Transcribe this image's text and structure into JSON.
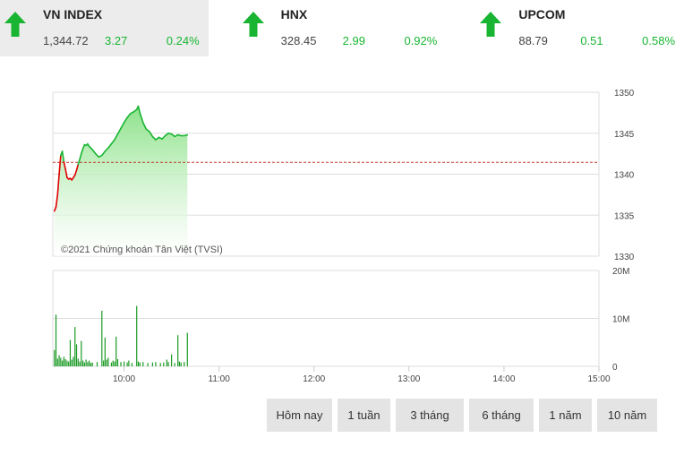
{
  "indices": [
    {
      "name": "VN INDEX",
      "price": "1,344.72",
      "change": "3.27",
      "percent": "0.24%",
      "direction": "up",
      "active": true
    },
    {
      "name": "HNX",
      "price": "328.45",
      "change": "2.99",
      "percent": "0.92%",
      "direction": "up",
      "active": false
    },
    {
      "name": "UPCOM",
      "price": "88.79",
      "change": "0.51",
      "percent": "0.58%",
      "direction": "up",
      "active": false
    }
  ],
  "colors": {
    "up": "#19b532",
    "down": "#e00000",
    "reference": "#c0392b",
    "fill_top": "#8de28a",
    "volume": "#1a9a23"
  },
  "watermark": "©2021 Chứng khoán Tân Việt (TVSI)",
  "timeframes": [
    "Hôm nay",
    "1 tuần",
    "3 tháng",
    "6 tháng",
    "1 năm",
    "10 năm"
  ],
  "chart_data": {
    "type": "area",
    "reference": 1341.45,
    "price_axis": {
      "ticks": [
        1330,
        1335,
        1340,
        1345,
        1350
      ],
      "ylim": [
        1330,
        1350
      ]
    },
    "volume_axis": {
      "ticks": [
        "0",
        "10M",
        "20M"
      ],
      "values": [
        0,
        10,
        20
      ],
      "ylim": [
        0,
        20
      ],
      "unit": "M"
    },
    "x_ticks": [
      {
        "label": "10:00",
        "t": 600
      },
      {
        "label": "11:00",
        "t": 660
      },
      {
        "label": "12:00",
        "t": 720
      },
      {
        "label": "13:00",
        "t": 780
      },
      {
        "label": "14:00",
        "t": 840
      },
      {
        "label": "15:00",
        "t": 900
      }
    ],
    "xlim": [
      555,
      900
    ],
    "price_series": [
      [
        556,
        1335.5
      ],
      [
        557,
        1336.0
      ],
      [
        558,
        1337.5
      ],
      [
        559,
        1340.0
      ],
      [
        560,
        1342.3
      ],
      [
        561,
        1342.8
      ],
      [
        562,
        1341.5
      ],
      [
        563,
        1340.6
      ],
      [
        564,
        1339.6
      ],
      [
        565,
        1339.4
      ],
      [
        566,
        1339.5
      ],
      [
        567,
        1339.3
      ],
      [
        568,
        1339.6
      ],
      [
        569,
        1339.9
      ],
      [
        570,
        1340.5
      ],
      [
        571,
        1341.2
      ],
      [
        572,
        1341.8
      ],
      [
        573,
        1342.5
      ],
      [
        574,
        1343.1
      ],
      [
        575,
        1343.6
      ],
      [
        576,
        1343.5
      ],
      [
        577,
        1343.7
      ],
      [
        578,
        1343.4
      ],
      [
        579,
        1343.2
      ],
      [
        580,
        1343.0
      ],
      [
        582,
        1342.5
      ],
      [
        584,
        1342.1
      ],
      [
        586,
        1342.3
      ],
      [
        588,
        1342.8
      ],
      [
        590,
        1343.2
      ],
      [
        592,
        1343.7
      ],
      [
        594,
        1344.2
      ],
      [
        596,
        1344.9
      ],
      [
        598,
        1345.6
      ],
      [
        600,
        1346.3
      ],
      [
        602,
        1346.9
      ],
      [
        604,
        1347.4
      ],
      [
        606,
        1347.6
      ],
      [
        608,
        1347.9
      ],
      [
        609,
        1348.3
      ],
      [
        610,
        1347.5
      ],
      [
        612,
        1346.3
      ],
      [
        614,
        1345.5
      ],
      [
        616,
        1345.2
      ],
      [
        618,
        1344.6
      ],
      [
        620,
        1344.2
      ],
      [
        622,
        1344.5
      ],
      [
        624,
        1344.3
      ],
      [
        626,
        1344.7
      ],
      [
        628,
        1345.0
      ],
      [
        630,
        1344.9
      ],
      [
        632,
        1344.6
      ],
      [
        634,
        1344.8
      ],
      [
        636,
        1344.7
      ],
      [
        638,
        1344.7
      ],
      [
        640,
        1344.8
      ]
    ],
    "volume_series": [
      [
        556,
        3.4
      ],
      [
        557,
        10.8
      ],
      [
        558,
        1.6
      ],
      [
        559,
        2.3
      ],
      [
        560,
        1.8
      ],
      [
        561,
        1.2
      ],
      [
        562,
        2.0
      ],
      [
        563,
        1.5
      ],
      [
        564,
        1.2
      ],
      [
        565,
        1.0
      ],
      [
        566,
        5.5
      ],
      [
        567,
        1.4
      ],
      [
        568,
        2.0
      ],
      [
        569,
        8.2
      ],
      [
        570,
        4.6
      ],
      [
        571,
        1.6
      ],
      [
        572,
        1.0
      ],
      [
        573,
        5.3
      ],
      [
        574,
        1.2
      ],
      [
        575,
        0.8
      ],
      [
        576,
        1.4
      ],
      [
        577,
        0.9
      ],
      [
        578,
        1.2
      ],
      [
        579,
        0.7
      ],
      [
        580,
        0.8
      ],
      [
        583,
        0.9
      ],
      [
        586,
        11.6
      ],
      [
        587,
        1.2
      ],
      [
        588,
        6.0
      ],
      [
        589,
        1.4
      ],
      [
        590,
        1.8
      ],
      [
        592,
        0.8
      ],
      [
        593,
        1.2
      ],
      [
        594,
        1.0
      ],
      [
        595,
        6.2
      ],
      [
        596,
        1.5
      ],
      [
        598,
        0.9
      ],
      [
        600,
        1.0
      ],
      [
        602,
        0.8
      ],
      [
        603,
        1.2
      ],
      [
        605,
        0.7
      ],
      [
        608,
        12.6
      ],
      [
        609,
        1.0
      ],
      [
        610,
        0.8
      ],
      [
        612,
        0.9
      ],
      [
        615,
        0.7
      ],
      [
        618,
        0.8
      ],
      [
        620,
        0.9
      ],
      [
        623,
        0.7
      ],
      [
        625,
        0.8
      ],
      [
        627,
        1.4
      ],
      [
        628,
        0.9
      ],
      [
        630,
        2.5
      ],
      [
        632,
        0.7
      ],
      [
        634,
        6.5
      ],
      [
        635,
        1.0
      ],
      [
        636,
        0.8
      ],
      [
        638,
        0.9
      ],
      [
        640,
        7.0
      ]
    ]
  }
}
